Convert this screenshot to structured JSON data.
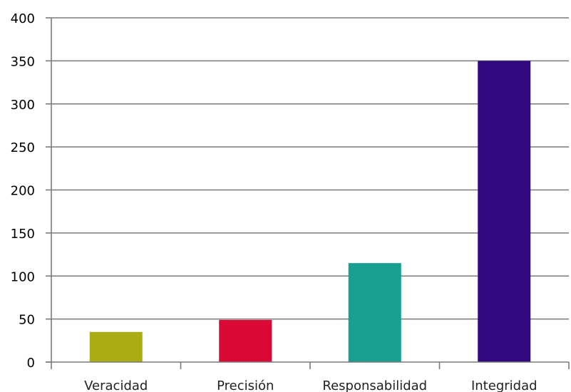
{
  "chart_data": {
    "type": "bar",
    "categories": [
      "Veracidad",
      "Precisión",
      "Responsabilidad",
      "Integridad"
    ],
    "values": [
      35,
      49,
      115,
      350
    ],
    "colors": [
      "#aaac12",
      "#d90835",
      "#189f8f",
      "#320a80"
    ],
    "ylim": [
      0,
      400
    ],
    "yticks": [
      "0",
      "50",
      "100",
      "150",
      "200",
      "250",
      "300",
      "350",
      "400"
    ],
    "grid": true,
    "legend": "none",
    "title": "",
    "xlabel": "",
    "ylabel": ""
  }
}
